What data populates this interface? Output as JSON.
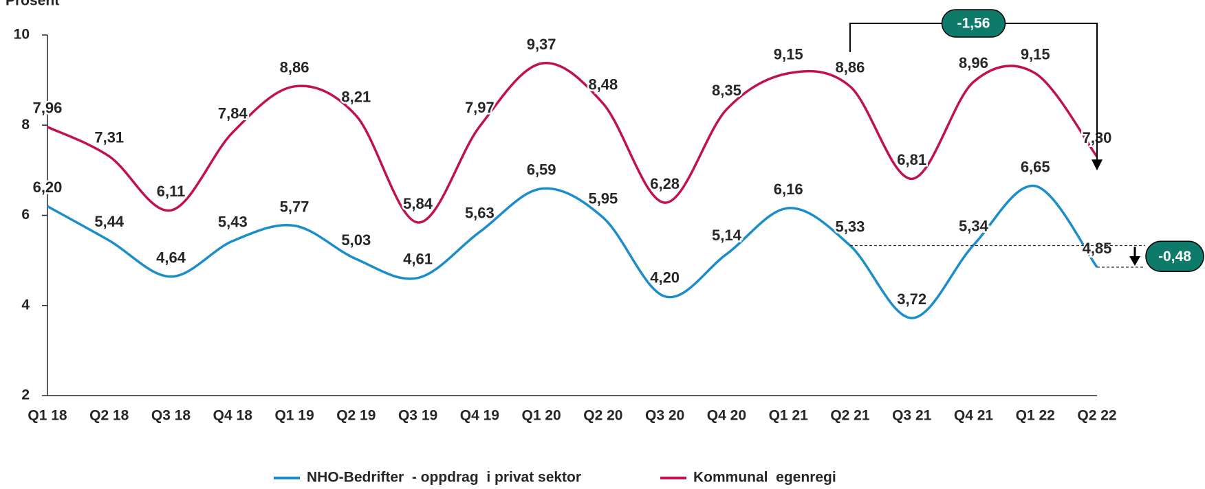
{
  "chart_data": {
    "type": "line",
    "y_label": "Prosent",
    "categories": [
      "Q1 18",
      "Q2 18",
      "Q3 18",
      "Q4 18",
      "Q1 19",
      "Q2 19",
      "Q3 19",
      "Q4 19",
      "Q1 20",
      "Q2 20",
      "Q3 20",
      "Q4 20",
      "Q1 21",
      "Q2 21",
      "Q3 21",
      "Q4 21",
      "Q1 22",
      "Q2 22"
    ],
    "series": [
      {
        "name": "NHO-Bedrifter  - oppdrag  i privat sektor",
        "color": "#1b8dcb",
        "values": [
          6.2,
          5.44,
          4.64,
          5.43,
          5.77,
          5.03,
          4.61,
          5.63,
          6.59,
          5.95,
          4.2,
          5.14,
          6.16,
          5.33,
          3.72,
          5.34,
          6.65,
          4.85
        ],
        "value_labels": [
          "6,20",
          "5,44",
          "4,64",
          "5,43",
          "5,77",
          "5,03",
          "4,61",
          "5,63",
          "6,59",
          "5,95",
          "4,20",
          "5,14",
          "6,16",
          "5,33",
          "3,72",
          "5,34",
          "6,65",
          "4,85"
        ]
      },
      {
        "name": "Kommunal  egenregi",
        "color": "#c0134a",
        "values": [
          7.96,
          7.31,
          6.11,
          7.84,
          8.86,
          8.21,
          5.84,
          7.97,
          9.37,
          8.48,
          6.28,
          8.35,
          9.15,
          8.86,
          6.81,
          8.96,
          9.15,
          7.3
        ],
        "value_labels": [
          "7,96",
          "7,31",
          "6,11",
          "7,84",
          "8,86",
          "8,21",
          "5,84",
          "7,97",
          "9,37",
          "8,48",
          "6,28",
          "8,35",
          "9,15",
          "8,86",
          "6,81",
          "8,96",
          "9,15",
          "7,30"
        ]
      }
    ],
    "ylim": [
      2,
      10
    ],
    "yticks": [
      2,
      4,
      6,
      8,
      10
    ],
    "annotations": [
      "-1,56",
      "-0,48"
    ],
    "annotation_color": "#0e7a6a"
  }
}
